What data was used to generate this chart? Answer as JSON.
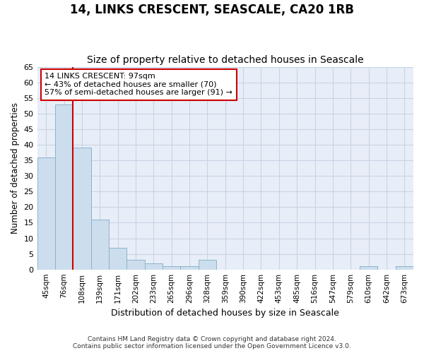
{
  "title": "14, LINKS CRESCENT, SEASCALE, CA20 1RB",
  "subtitle": "Size of property relative to detached houses in Seascale",
  "xlabel": "Distribution of detached houses by size in Seascale",
  "ylabel": "Number of detached properties",
  "categories": [
    "45sqm",
    "76sqm",
    "108sqm",
    "139sqm",
    "171sqm",
    "202sqm",
    "233sqm",
    "265sqm",
    "296sqm",
    "328sqm",
    "359sqm",
    "390sqm",
    "422sqm",
    "453sqm",
    "485sqm",
    "516sqm",
    "547sqm",
    "579sqm",
    "610sqm",
    "642sqm",
    "673sqm"
  ],
  "values": [
    36,
    53,
    39,
    16,
    7,
    3,
    2,
    1,
    1,
    3,
    0,
    0,
    0,
    0,
    0,
    0,
    0,
    0,
    1,
    0,
    1
  ],
  "bar_color": "#ccdded",
  "bar_edge_color": "#8ab4cc",
  "grid_color": "#c8d4e4",
  "bg_color": "#e8eef8",
  "vline_x": 2,
  "vline_color": "#cc0000",
  "annotation_box_text": "14 LINKS CRESCENT: 97sqm\n← 43% of detached houses are smaller (70)\n57% of semi-detached houses are larger (91) →",
  "annotation_box_color": "#cc0000",
  "footer": "Contains HM Land Registry data © Crown copyright and database right 2024.\nContains public sector information licensed under the Open Government Licence v3.0.",
  "ylim": [
    0,
    65
  ],
  "yticks": [
    0,
    5,
    10,
    15,
    20,
    25,
    30,
    35,
    40,
    45,
    50,
    55,
    60,
    65
  ],
  "title_fontsize": 12,
  "subtitle_fontsize": 10
}
